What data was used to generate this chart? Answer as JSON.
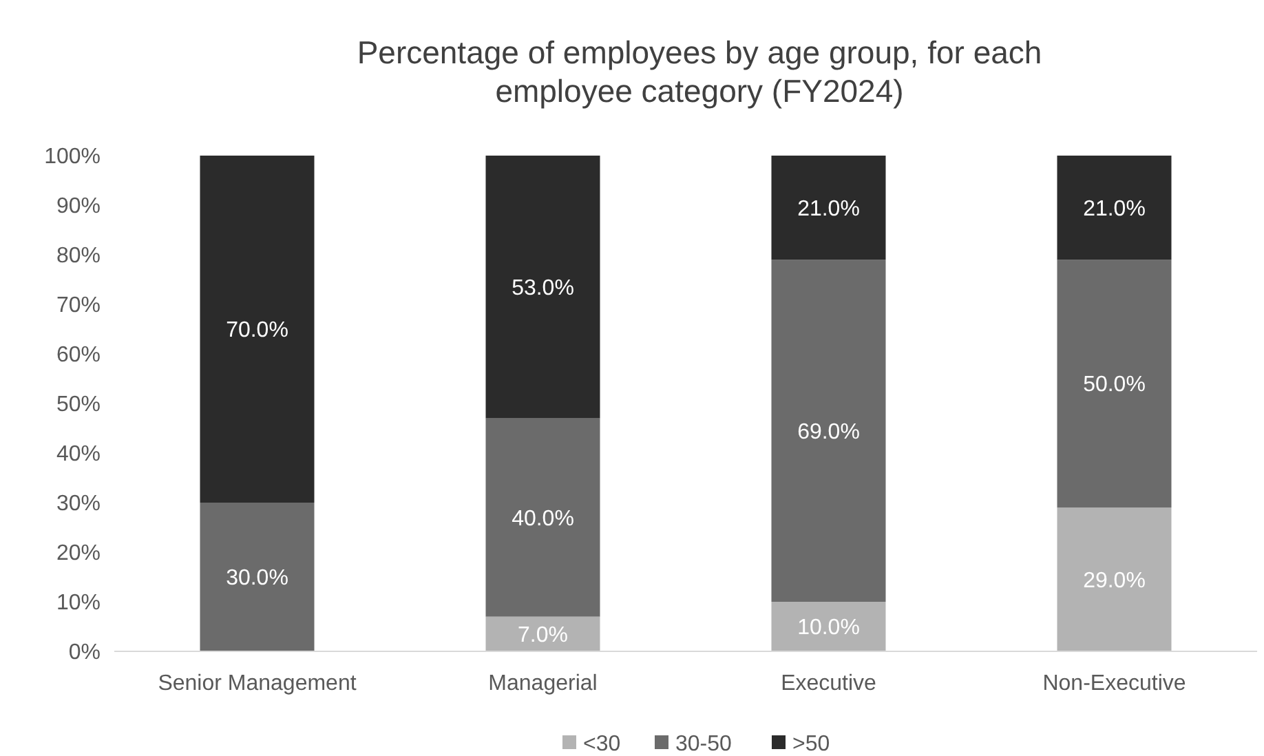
{
  "chart_data": {
    "type": "bar",
    "stacked": true,
    "title": "Percentage of employees by age group, for each employee category (FY2024)",
    "categories": [
      "Senior Management",
      "Managerial",
      "Executive",
      "Non-Executive"
    ],
    "series": [
      {
        "name": "<30",
        "color": "#b3b3b3",
        "values": [
          0,
          7,
          10,
          29
        ],
        "value_labels": [
          null,
          "7.0%",
          "10.0%",
          "29.0%"
        ]
      },
      {
        "name": "30-50",
        "color": "#6b6b6b",
        "values": [
          30,
          40,
          69,
          50
        ],
        "value_labels": [
          "30.0%",
          "40.0%",
          "69.0%",
          "50.0%"
        ]
      },
      {
        "name": ">50",
        "color": "#2b2b2b",
        "values": [
          70,
          53,
          21,
          21
        ],
        "value_labels": [
          "70.0%",
          "53.0%",
          "21.0%",
          "21.0%"
        ]
      }
    ],
    "ylim": [
      0,
      100
    ],
    "yticks": [
      {
        "value": 0,
        "label": "0%"
      },
      {
        "value": 10,
        "label": "10%"
      },
      {
        "value": 20,
        "label": "20%"
      },
      {
        "value": 30,
        "label": "30%"
      },
      {
        "value": 40,
        "label": "40%"
      },
      {
        "value": 50,
        "label": "50%"
      },
      {
        "value": 60,
        "label": "60%"
      },
      {
        "value": 70,
        "label": "70%"
      },
      {
        "value": 80,
        "label": "80%"
      },
      {
        "value": 90,
        "label": "90%"
      },
      {
        "value": 100,
        "label": "100%"
      }
    ],
    "grid": false,
    "legend": "bottom"
  }
}
